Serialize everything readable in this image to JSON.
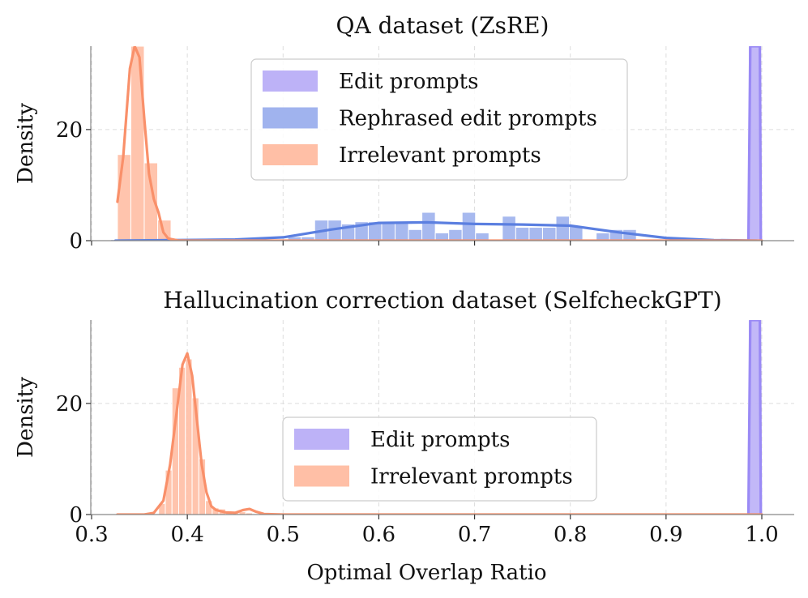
{
  "chart_data": [
    {
      "type": "histogram",
      "title": "QA dataset (ZsRE)",
      "xlabel": "",
      "ylabel": "Density",
      "xlim": [
        0.3,
        1.0
      ],
      "ylim": [
        0,
        35
      ],
      "xticks": [
        0.3,
        0.4,
        0.5,
        0.6,
        0.7,
        0.8,
        0.9,
        1.0
      ],
      "yticks": [
        0,
        20
      ],
      "grid": true,
      "legend_position": "top-center",
      "series": [
        {
          "name": "Edit prompts",
          "color": "#bdb2f7",
          "line_color": "#9a8af5",
          "bins": [
            [
              0.986,
              0.999,
              35
            ]
          ],
          "kde": [
            [
              0.986,
              0
            ],
            [
              0.988,
              35
            ],
            [
              0.998,
              35
            ],
            [
              0.999,
              0
            ]
          ]
        },
        {
          "name": "Rephrased edit prompts",
          "color": "#a0b3ee",
          "line_color": "#5b7fe0",
          "bins": [
            [
              0.32,
              0.4,
              0.2
            ],
            [
              0.505,
              0.519,
              0.7
            ],
            [
              0.519,
              0.533,
              0.7
            ],
            [
              0.533,
              0.547,
              3.7
            ],
            [
              0.547,
              0.561,
              3.7
            ],
            [
              0.561,
              0.575,
              3.0
            ],
            [
              0.575,
              0.589,
              3.4
            ],
            [
              0.589,
              0.603,
              3.4
            ],
            [
              0.603,
              0.617,
              3.4
            ],
            [
              0.617,
              0.631,
              3.4
            ],
            [
              0.631,
              0.645,
              2.0
            ],
            [
              0.645,
              0.659,
              5.1
            ],
            [
              0.659,
              0.673,
              1.4
            ],
            [
              0.673,
              0.687,
              2.0
            ],
            [
              0.687,
              0.701,
              5.1
            ],
            [
              0.701,
              0.715,
              1.4
            ],
            [
              0.715,
              0.729,
              0.2
            ],
            [
              0.729,
              0.743,
              4.4
            ],
            [
              0.743,
              0.757,
              2.4
            ],
            [
              0.757,
              0.771,
              2.4
            ],
            [
              0.771,
              0.785,
              2.4
            ],
            [
              0.785,
              0.799,
              4.4
            ],
            [
              0.799,
              0.813,
              2.7
            ],
            [
              0.813,
              0.827,
              0.2
            ],
            [
              0.827,
              0.841,
              1.4
            ],
            [
              0.841,
              0.855,
              2.0
            ],
            [
              0.855,
              0.869,
              2.0
            ],
            [
              0.869,
              0.883,
              0.2
            ]
          ],
          "kde": [
            [
              0.325,
              0
            ],
            [
              0.45,
              0.2
            ],
            [
              0.5,
              0.6
            ],
            [
              0.55,
              2.0
            ],
            [
              0.6,
              3.2
            ],
            [
              0.65,
              3.3
            ],
            [
              0.7,
              3.0
            ],
            [
              0.75,
              2.9
            ],
            [
              0.8,
              2.7
            ],
            [
              0.85,
              1.5
            ],
            [
              0.9,
              0.5
            ],
            [
              0.95,
              0.1
            ],
            [
              0.995,
              0
            ]
          ]
        },
        {
          "name": "Irrelevant prompts",
          "color": "#ffbfa6",
          "line_color": "#f9906a",
          "bins": [
            [
              0.327,
              0.341,
              15.5
            ],
            [
              0.341,
              0.355,
              35
            ],
            [
              0.355,
              0.369,
              14
            ],
            [
              0.369,
              0.383,
              3.7
            ],
            [
              0.383,
              0.397,
              0.3
            ]
          ],
          "kde": [
            [
              0.327,
              7
            ],
            [
              0.333,
              15
            ],
            [
              0.34,
              31
            ],
            [
              0.345,
              37
            ],
            [
              0.35,
              33
            ],
            [
              0.355,
              22
            ],
            [
              0.36,
              12
            ],
            [
              0.365,
              7.5
            ],
            [
              0.37,
              5
            ],
            [
              0.375,
              1.5
            ],
            [
              0.38,
              0.4
            ],
            [
              0.39,
              0.05
            ],
            [
              0.4,
              0
            ],
            [
              0.5,
              0
            ],
            [
              1.0,
              0
            ]
          ]
        }
      ]
    },
    {
      "type": "histogram",
      "title": "Hallucination correction dataset (SelfcheckGPT)",
      "xlabel": "Optimal Overlap Ratio",
      "ylabel": "Density",
      "xlim": [
        0.3,
        1.0
      ],
      "ylim": [
        0,
        35
      ],
      "xticks": [
        0.3,
        0.4,
        0.5,
        0.6,
        0.7,
        0.8,
        0.9,
        1.0
      ],
      "yticks": [
        0,
        20
      ],
      "grid": true,
      "legend_position": "lower-center",
      "series": [
        {
          "name": "Edit prompts",
          "color": "#bdb2f7",
          "line_color": "#9a8af5",
          "bins": [
            [
              0.986,
              0.999,
              35
            ]
          ],
          "kde": [
            [
              0.986,
              0
            ],
            [
              0.988,
              35
            ],
            [
              0.998,
              35
            ],
            [
              0.999,
              0
            ]
          ]
        },
        {
          "name": "Irrelevant prompts",
          "color": "#ffbfa6",
          "line_color": "#f9906a",
          "bins": [
            [
              0.37,
              0.377,
              2.0
            ],
            [
              0.377,
              0.384,
              8.0
            ],
            [
              0.384,
              0.391,
              22.8
            ],
            [
              0.391,
              0.398,
              26.5
            ],
            [
              0.398,
              0.405,
              28.0
            ],
            [
              0.405,
              0.412,
              21.0
            ],
            [
              0.412,
              0.419,
              10.0
            ],
            [
              0.419,
              0.426,
              2.5
            ],
            [
              0.426,
              0.433,
              1.2
            ],
            [
              0.433,
              0.44,
              1.0
            ],
            [
              0.44,
              0.447,
              0.5
            ],
            [
              0.447,
              0.454,
              0.3
            ],
            [
              0.454,
              0.461,
              0.5
            ],
            [
              0.461,
              0.468,
              0.3
            ]
          ],
          "kde": [
            [
              0.327,
              0
            ],
            [
              0.355,
              0
            ],
            [
              0.365,
              0.3
            ],
            [
              0.375,
              2.5
            ],
            [
              0.382,
              9
            ],
            [
              0.39,
              20
            ],
            [
              0.395,
              27
            ],
            [
              0.4,
              29
            ],
            [
              0.405,
              25
            ],
            [
              0.41,
              17
            ],
            [
              0.415,
              9
            ],
            [
              0.42,
              4
            ],
            [
              0.425,
              1.5
            ],
            [
              0.43,
              0.8
            ],
            [
              0.44,
              0.4
            ],
            [
              0.45,
              0.3
            ],
            [
              0.458,
              0.8
            ],
            [
              0.465,
              1.0
            ],
            [
              0.472,
              0.5
            ],
            [
              0.48,
              0.1
            ],
            [
              0.5,
              0
            ],
            [
              1.0,
              0
            ]
          ]
        }
      ]
    }
  ]
}
